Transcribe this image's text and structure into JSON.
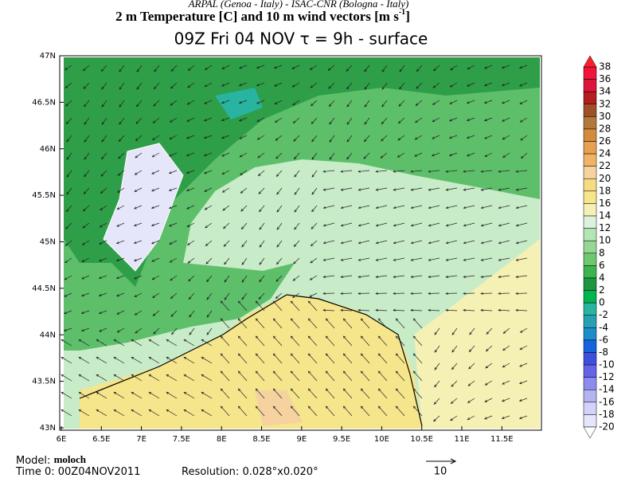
{
  "header": {
    "line1": "ARPAL (Genoa - Italy)  -  ISAC-CNR (Bologna - Italy)",
    "line2": "2 m Temperature [C] and 10 m wind vectors [m s",
    "line2_sup": "-1",
    "line2_end": "]",
    "line3": "09Z Fri 04 NOV  τ = 9h  -  surface"
  },
  "axes": {
    "lat_labels": [
      "47N",
      "46.5N",
      "46N",
      "45.5N",
      "45N",
      "44.5N",
      "44N",
      "43.5N",
      "43N"
    ],
    "lon_labels": [
      "6E",
      "6.5E",
      "7E",
      "7.5E",
      "8E",
      "8.5E",
      "9E",
      "9.5E",
      "10E",
      "10.5E",
      "11E",
      "11.5E"
    ]
  },
  "colorbar": {
    "labels": [
      38,
      36,
      34,
      32,
      30,
      28,
      26,
      24,
      22,
      20,
      18,
      16,
      14,
      12,
      10,
      8,
      6,
      4,
      2,
      0,
      -2,
      -4,
      -6,
      -8,
      -10,
      -12,
      -14,
      -16,
      -18,
      -20
    ],
    "colors": [
      "#f0143c",
      "#dc143c",
      "#b41e1e",
      "#a05028",
      "#b4783c",
      "#d28c3c",
      "#e6a050",
      "#f0b464",
      "#f5d2a0",
      "#f5dc82",
      "#f5e68c",
      "#f5f0b4",
      "#dcf2dc",
      "#b4e6b4",
      "#96d796",
      "#6ec86e",
      "#3cb450",
      "#1e9641",
      "#00b450",
      "#28b4a0",
      "#28a0b4",
      "#1e8cc8",
      "#1464dc",
      "#3c50dc",
      "#6464e6",
      "#8c8cf0",
      "#b4b4f0",
      "#d2d2fa",
      "#e6e6fa"
    ],
    "top_color": "#ff1e28",
    "bottom_color": "#ffffff"
  },
  "footer": {
    "model_label": "Model:",
    "model": "moloch",
    "time_label": "Time 0:",
    "time": "00Z04NOV2011",
    "resolution_label": "Resolution:",
    "resolution": "0.028°x0.020°",
    "vector_ref": 10
  }
}
